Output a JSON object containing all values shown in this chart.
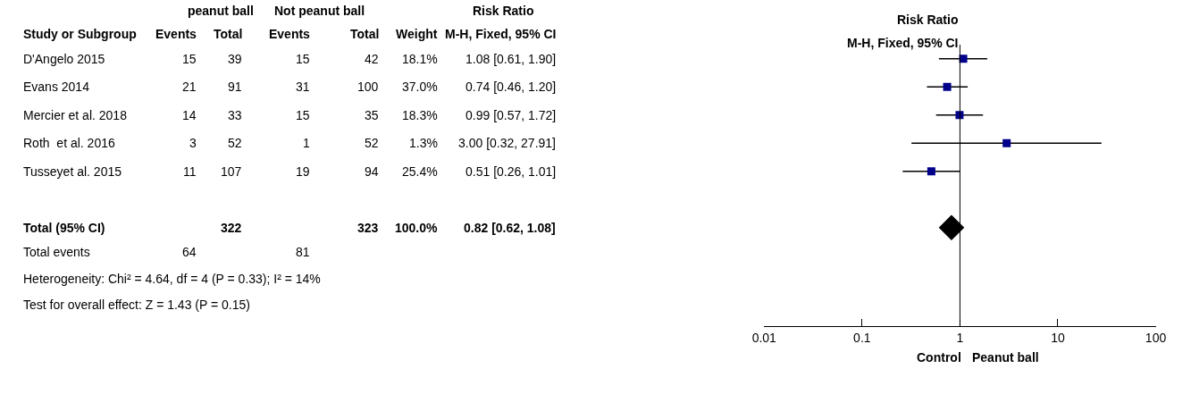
{
  "chart_data": [
    {
      "type": "other",
      "annotations": [
        "peanut ball",
        "Not peanut ball",
        "Risk Ratio",
        "Study or Subgroup",
        "Events",
        "Total",
        "Events",
        "Total",
        "Weight",
        "M-H, Fixed, 95% CI",
        "D'Angelo 2015",
        "15",
        "39",
        "15",
        "42",
        "18.1%",
        "1.08 [0.61, 1.90]",
        "Evans 2014",
        "21",
        "91",
        "31",
        "100",
        "37.0%",
        "0.74 [0.46, 1.20]",
        "Mercier et al. 2018",
        "14",
        "33",
        "15",
        "35",
        "18.3%",
        "0.99 [0.57, 1.72]",
        "Roth  et al. 2016",
        "3",
        "52",
        "1",
        "52",
        "1.3%",
        "3.00 [0.32, 27.91]",
        "Tusseyet al. 2015",
        "11",
        "107",
        "19",
        "94",
        "25.4%",
        "0.51 [0.26, 1.01]",
        "Total (95% CI)",
        "322",
        "323",
        "100.0%",
        "0.82 [0.62, 1.08]",
        "Total events",
        "64",
        "81",
        "Heterogeneity: Chi² = 4.64, df = 4 (P = 0.33); I² = 14%",
        "Test for overall effect: Z = 1.43 (P = 0.15)"
      ]
    },
    {
      "type": "scatter",
      "orientation": "horizontal",
      "title": "Risk Ratio",
      "subtitle": "M-H, Fixed, 95% CI",
      "categories": [
        null,
        null,
        null,
        null,
        null,
        null,
        null,
        null,
        null,
        null
      ],
      "series": [
        {
          "color": "#00008b",
          "marker": "square",
          "values": [
            1.08,
            0.74,
            0.99,
            3.0,
            0.51,
            null,
            null,
            null,
            null,
            null
          ],
          "errors": [
            [
              0.61,
              1.9
            ],
            [
              0.46,
              1.2
            ],
            [
              0.57,
              1.72
            ],
            [
              0.32,
              27.91
            ],
            [
              0.26,
              1.01
            ],
            null,
            null,
            null,
            null,
            null
          ]
        },
        {
          "color": "#000000",
          "marker": "diamond",
          "values": [
            null,
            null,
            null,
            null,
            null,
            null,
            0.82,
            null,
            null,
            null
          ]
        }
      ],
      "log": "x",
      "xlim": [
        0.01,
        100
      ],
      "xticks": [
        0.01,
        0.1,
        1,
        10,
        100
      ],
      "ref_lines": [
        {
          "axis": "x",
          "value": 1,
          "color": "#000000"
        }
      ],
      "annotations": [
        "Control",
        "Peanut ball"
      ],
      "tick_labels": "x"
    }
  ]
}
